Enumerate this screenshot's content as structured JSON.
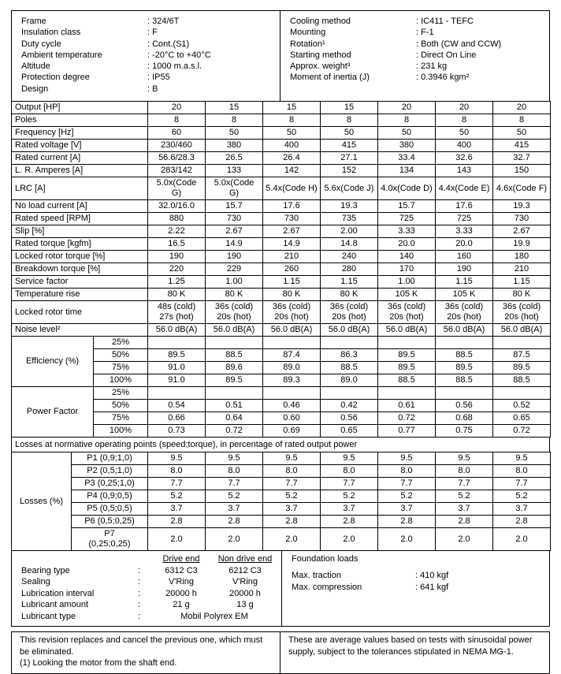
{
  "general": {
    "left": [
      {
        "label": "Frame",
        "value": ": 324/6T"
      },
      {
        "label": "Insulation class",
        "value": ": F"
      },
      {
        "label": "Duty cycle",
        "value": ": Cont.(S1)"
      },
      {
        "label": "Ambient temperature",
        "value": ": -20°C to +40°C"
      },
      {
        "label": "Altitude",
        "value": ": 1000 m.a.s.l."
      },
      {
        "label": "Protection degree",
        "value": ": IP55"
      },
      {
        "label": "Design",
        "value": ": B"
      }
    ],
    "right": [
      {
        "label": "Cooling method",
        "value": ": IC411 - TEFC"
      },
      {
        "label": "Mounting",
        "value": ": F-1"
      },
      {
        "label": "Rotation¹",
        "value": ": Both (CW and CCW)"
      },
      {
        "label": "Starting method",
        "value": ": Direct On Line"
      },
      {
        "label": "Approx. weight³",
        "value": ": 231 kg"
      },
      {
        "label": "Moment of inertia (J)",
        "value": ": 0.3946 kgm²"
      }
    ]
  },
  "spec_table": {
    "rows": [
      {
        "label": "Output [HP]",
        "values": [
          "20",
          "15",
          "15",
          "15",
          "20",
          "20",
          "20"
        ]
      },
      {
        "label": "Poles",
        "values": [
          "8",
          "8",
          "8",
          "8",
          "8",
          "8",
          "8"
        ]
      },
      {
        "label": "Frequency [Hz]",
        "values": [
          "60",
          "50",
          "50",
          "50",
          "50",
          "50",
          "50"
        ]
      },
      {
        "label": "Rated voltage [V]",
        "values": [
          "230/460",
          "380",
          "400",
          "415",
          "380",
          "400",
          "415"
        ]
      },
      {
        "label": "Rated current [A]",
        "values": [
          "56.6/28.3",
          "26.5",
          "26.4",
          "27.1",
          "33.4",
          "32.6",
          "32.7"
        ]
      },
      {
        "label": "L. R. Amperes [A]",
        "values": [
          "283/142",
          "133",
          "142",
          "152",
          "134",
          "143",
          "150"
        ]
      },
      {
        "label": "LRC [A]",
        "values": [
          "5.0x(Code\nG)",
          "5.0x(Code\nG)",
          "5.4x(Code H)",
          "5.6x(Code J)",
          "4.0x(Code D)",
          "4.4x(Code E)",
          "4.6x(Code F)"
        ]
      },
      {
        "label": "No load current [A]",
        "values": [
          "32.0/16.0",
          "15.7",
          "17.6",
          "19.3",
          "15.7",
          "17.6",
          "19.3"
        ]
      },
      {
        "label": "Rated speed [RPM]",
        "values": [
          "880",
          "730",
          "730",
          "735",
          "725",
          "725",
          "730"
        ]
      },
      {
        "label": "Slip [%]",
        "values": [
          "2.22",
          "2.67",
          "2.67",
          "2.00",
          "3.33",
          "3.33",
          "2.67"
        ]
      },
      {
        "label": "Rated torque [kgfm]",
        "values": [
          "16.5",
          "14.9",
          "14.9",
          "14.8",
          "20.0",
          "20.0",
          "19.9"
        ]
      },
      {
        "label": "Locked rotor torque [%]",
        "values": [
          "190",
          "190",
          "210",
          "240",
          "140",
          "160",
          "180"
        ]
      },
      {
        "label": "Breakdown torque [%]",
        "values": [
          "220",
          "229",
          "260",
          "280",
          "170",
          "190",
          "210"
        ]
      },
      {
        "label": "Service factor",
        "values": [
          "1.25",
          "1.00",
          "1.15",
          "1.15",
          "1.00",
          "1.15",
          "1.15"
        ]
      },
      {
        "label": "Temperature rise",
        "values": [
          "80 K",
          "80 K",
          "80 K",
          "80 K",
          "105 K",
          "105 K",
          "80 K"
        ]
      },
      {
        "label": "Locked rotor time",
        "values": [
          "48s (cold)\n27s (hot)",
          "36s (cold)\n20s (hot)",
          "36s (cold)\n20s (hot)",
          "36s (cold)\n20s (hot)",
          "36s (cold)\n20s (hot)",
          "36s (cold)\n20s (hot)",
          "36s (cold)\n20s (hot)"
        ]
      },
      {
        "label": "Noise level²",
        "values": [
          "56.0 dB(A)",
          "56.0 dB(A)",
          "56.0 dB(A)",
          "56.0 dB(A)",
          "56.0 dB(A)",
          "56.0 dB(A)",
          "56.0 dB(A)"
        ]
      }
    ]
  },
  "efficiency": {
    "label": "Efficiency (%)",
    "rows": [
      {
        "load": "25%",
        "values": [
          "",
          "",
          "",
          "",
          "",
          "",
          ""
        ]
      },
      {
        "load": "50%",
        "values": [
          "89.5",
          "88.5",
          "87.4",
          "86.3",
          "89.5",
          "88.5",
          "87.5"
        ]
      },
      {
        "load": "75%",
        "values": [
          "91.0",
          "89.6",
          "89.0",
          "88.5",
          "89.5",
          "89.5",
          "89.5"
        ]
      },
      {
        "load": "100%",
        "values": [
          "91.0",
          "89.5",
          "89.3",
          "89.0",
          "88.5",
          "88.5",
          "88.5"
        ]
      }
    ]
  },
  "power_factor": {
    "label": "Power Factor",
    "rows": [
      {
        "load": "25%",
        "values": [
          "",
          "",
          "",
          "",
          "",
          "",
          ""
        ]
      },
      {
        "load": "50%",
        "values": [
          "0.54",
          "0.51",
          "0.46",
          "0.42",
          "0.61",
          "0.56",
          "0.52"
        ]
      },
      {
        "load": "75%",
        "values": [
          "0.66",
          "0.64",
          "0.60",
          "0.56",
          "0.72",
          "0.68",
          "0.65"
        ]
      },
      {
        "load": "100%",
        "values": [
          "0.73",
          "0.72",
          "0.69",
          "0.65",
          "0.77",
          "0.75",
          "0.72"
        ]
      }
    ]
  },
  "losses_caption": "Losses at normative operating points (speed;torque), in percentage of rated output power",
  "losses": {
    "label": "Losses (%)",
    "rows": [
      {
        "point": "P1 (0,9;1,0)",
        "values": [
          "9.5",
          "9.5",
          "9.5",
          "9.5",
          "9.5",
          "9.5",
          "9.5"
        ]
      },
      {
        "point": "P2 (0,5;1,0)",
        "values": [
          "8.0",
          "8.0",
          "8.0",
          "8.0",
          "8.0",
          "8.0",
          "8.0"
        ]
      },
      {
        "point": "P3 (0,25;1,0)",
        "values": [
          "7.7",
          "7.7",
          "7.7",
          "7.7",
          "7.7",
          "7.7",
          "7.7"
        ]
      },
      {
        "point": "P4 (0,9;0,5)",
        "values": [
          "5.2",
          "5.2",
          "5.2",
          "5.2",
          "5.2",
          "5.2",
          "5.2"
        ]
      },
      {
        "point": "P5 (0,5;0,5)",
        "values": [
          "3.7",
          "3.7",
          "3.7",
          "3.7",
          "3.7",
          "3.7",
          "3.7"
        ]
      },
      {
        "point": "P6 (0,5;0,25)",
        "values": [
          "2.8",
          "2.8",
          "2.8",
          "2.8",
          "2.8",
          "2.8",
          "2.8"
        ]
      },
      {
        "point": "P7\n(0,25;0,25)",
        "values": [
          "2.0",
          "2.0",
          "2.0",
          "2.0",
          "2.0",
          "2.0",
          "2.0"
        ]
      }
    ]
  },
  "bearings": {
    "col_headers": [
      "Drive end",
      "Non drive end"
    ],
    "rows": [
      {
        "label": "Bearing type",
        "colon": ":",
        "drive": "6312 C3",
        "non_drive": "6212 C3"
      },
      {
        "label": "Sealing",
        "colon": ":",
        "drive": "V'Ring",
        "non_drive": "V'Ring"
      },
      {
        "label": "Lubrication interval",
        "colon": ":",
        "drive": "20000 h",
        "non_drive": "20000 h"
      },
      {
        "label": "Lubricant amount",
        "colon": ":",
        "drive": "21 g",
        "non_drive": "13 g"
      },
      {
        "label": "Lubricant type",
        "colon": ":",
        "span": "Mobil Polyrex EM"
      }
    ]
  },
  "foundation": {
    "title": "Foundation loads",
    "rows": [
      {
        "label": "Max. traction",
        "value": ": 410 kgf"
      },
      {
        "label": "Max. compression",
        "value": ": 641 kgf"
      }
    ]
  },
  "notes": {
    "left": "This revision replaces and cancel the previous one, which must be eliminated.\n(1) Looking the motor from the shaft end.",
    "right": "These are average values based on tests with sinusoidal power supply, subject to the tolerances stipulated in NEMA MG-1."
  }
}
